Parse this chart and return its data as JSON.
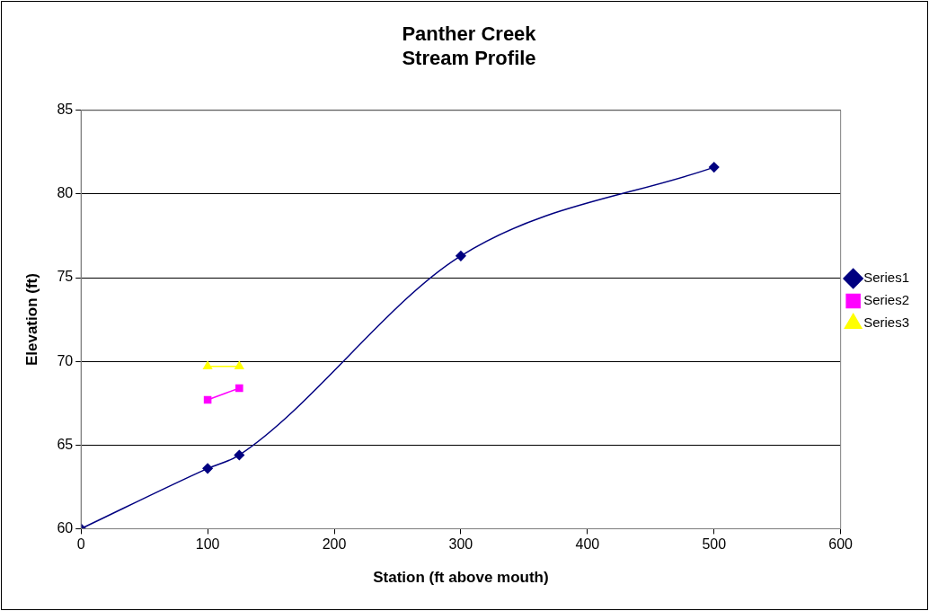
{
  "chart_data": {
    "type": "line",
    "title": [
      "Panther Creek",
      "Stream Profile"
    ],
    "xlabel": "Station (ft above mouth)",
    "ylabel": "Elevation (ft)",
    "series": [
      {
        "name": "Series1",
        "color": "#000080",
        "marker": "diamond",
        "x": [
          0,
          100,
          125,
          300,
          500
        ],
        "values": [
          60,
          63.6,
          64.4,
          76.3,
          81.6
        ]
      },
      {
        "name": "Series2",
        "color": "#ff00ff",
        "marker": "square",
        "x": [
          100,
          125
        ],
        "values": [
          67.7,
          68.4
        ]
      },
      {
        "name": "Series3",
        "color": "#ffff00",
        "marker": "triangle",
        "x": [
          100,
          125
        ],
        "values": [
          69.7,
          69.7
        ]
      }
    ],
    "xlim": [
      0,
      600
    ],
    "xticks": [
      0,
      100,
      200,
      300,
      400,
      500,
      600
    ],
    "ylim": [
      60,
      85
    ],
    "yticks": [
      60,
      65,
      70,
      75,
      80,
      85
    ],
    "grid": "y",
    "legend": "right",
    "line_style": "solid"
  }
}
